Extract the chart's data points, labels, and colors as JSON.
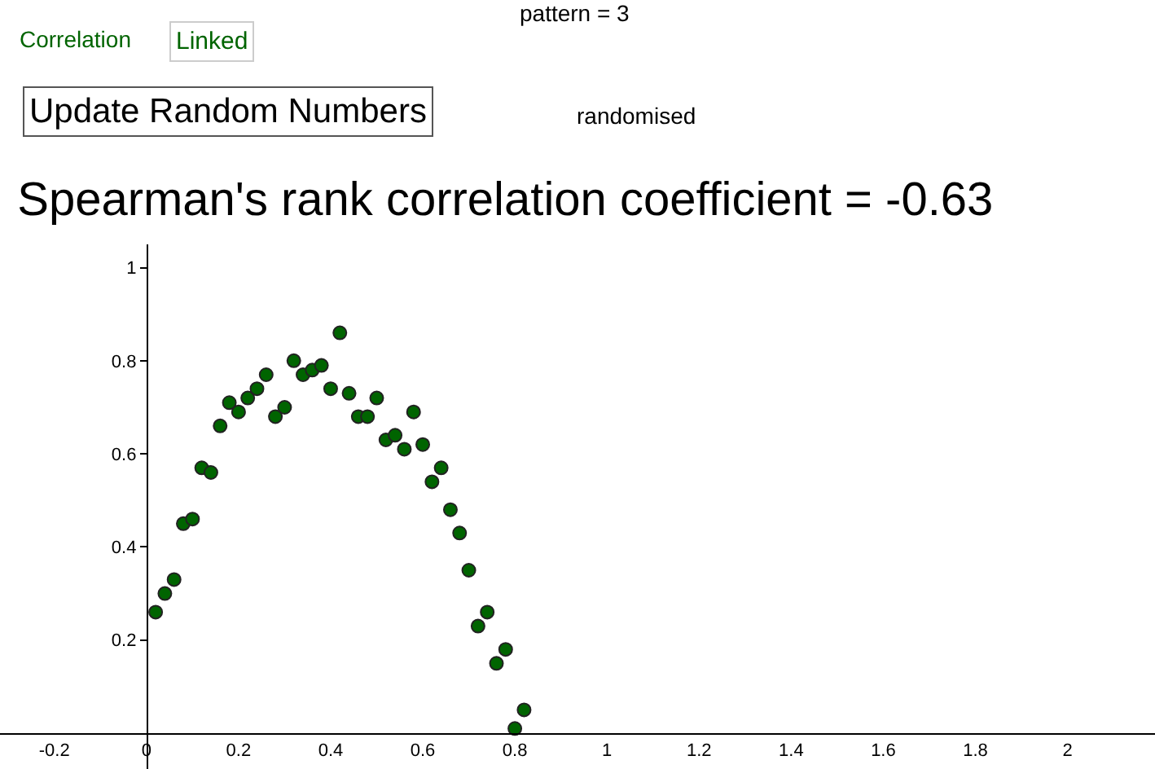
{
  "chart_data": {
    "type": "scatter",
    "title": "Spearman's rank correlation coefficient = -0.63",
    "annotations": [
      "Correlation",
      "Linked",
      "pattern = 3",
      "Update Random Numbers",
      "randomised"
    ],
    "x": [
      0.02,
      0.04,
      0.06,
      0.08,
      0.1,
      0.12,
      0.14,
      0.16,
      0.18,
      0.2,
      0.22,
      0.24,
      0.26,
      0.28,
      0.3,
      0.32,
      0.34,
      0.36,
      0.38,
      0.4,
      0.42,
      0.44,
      0.46,
      0.48,
      0.5,
      0.52,
      0.54,
      0.56,
      0.58,
      0.6,
      0.62,
      0.64,
      0.66,
      0.68,
      0.7,
      0.72,
      0.74,
      0.76,
      0.78,
      0.8,
      0.82
    ],
    "series": [
      {
        "color": "#006400",
        "values": [
          0.26,
          0.3,
          0.33,
          0.45,
          0.46,
          0.57,
          0.56,
          0.66,
          0.71,
          0.69,
          0.72,
          0.74,
          0.77,
          0.68,
          0.7,
          0.8,
          0.77,
          0.78,
          0.79,
          0.74,
          0.86,
          0.73,
          0.68,
          0.68,
          0.72,
          0.63,
          0.64,
          0.61,
          0.69,
          0.62,
          0.54,
          0.57,
          0.48,
          0.43,
          0.35,
          0.23,
          0.26,
          0.15,
          0.18,
          0.01,
          0.05
        ]
      }
    ],
    "xlim": [
      -0.318,
      2.19
    ],
    "ylim": [
      -0.077,
      1.05
    ],
    "xticks": [
      -0.2,
      {
        "value": 0,
        "label": "0"
      },
      0.2,
      0.4,
      0.6,
      0.8,
      1,
      1.2,
      1.4,
      1.6,
      1.8,
      2
    ],
    "yticks": [
      0.2,
      0.4,
      0.6,
      0.8,
      1
    ],
    "marker": "circle"
  }
}
